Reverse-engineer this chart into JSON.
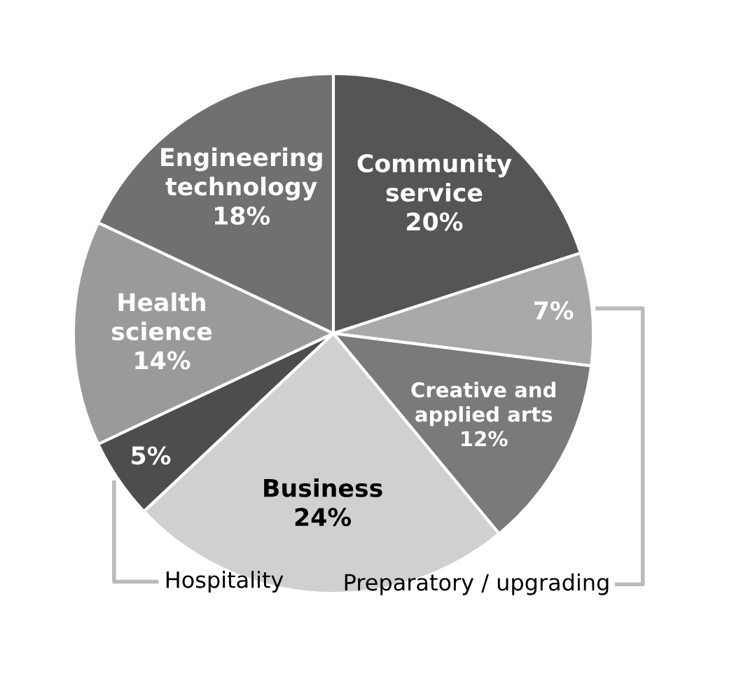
{
  "chart_data": {
    "type": "pie",
    "categories": [
      "Community service",
      "Preparatory / upgrading",
      "Creative and applied arts",
      "Business",
      "Hospitality",
      "Health science",
      "Engineering technology"
    ],
    "values": [
      20,
      7,
      12,
      24,
      5,
      14,
      18
    ],
    "value_labels": [
      "20%",
      "7%",
      "12%",
      "24%",
      "5%",
      "14%",
      "18%"
    ],
    "colors": [
      "#555555",
      "#a9a9a9",
      "#7a7a7a",
      "#d0d0d0",
      "#4d4d4d",
      "#9a9a9a",
      "#707070"
    ]
  }
}
